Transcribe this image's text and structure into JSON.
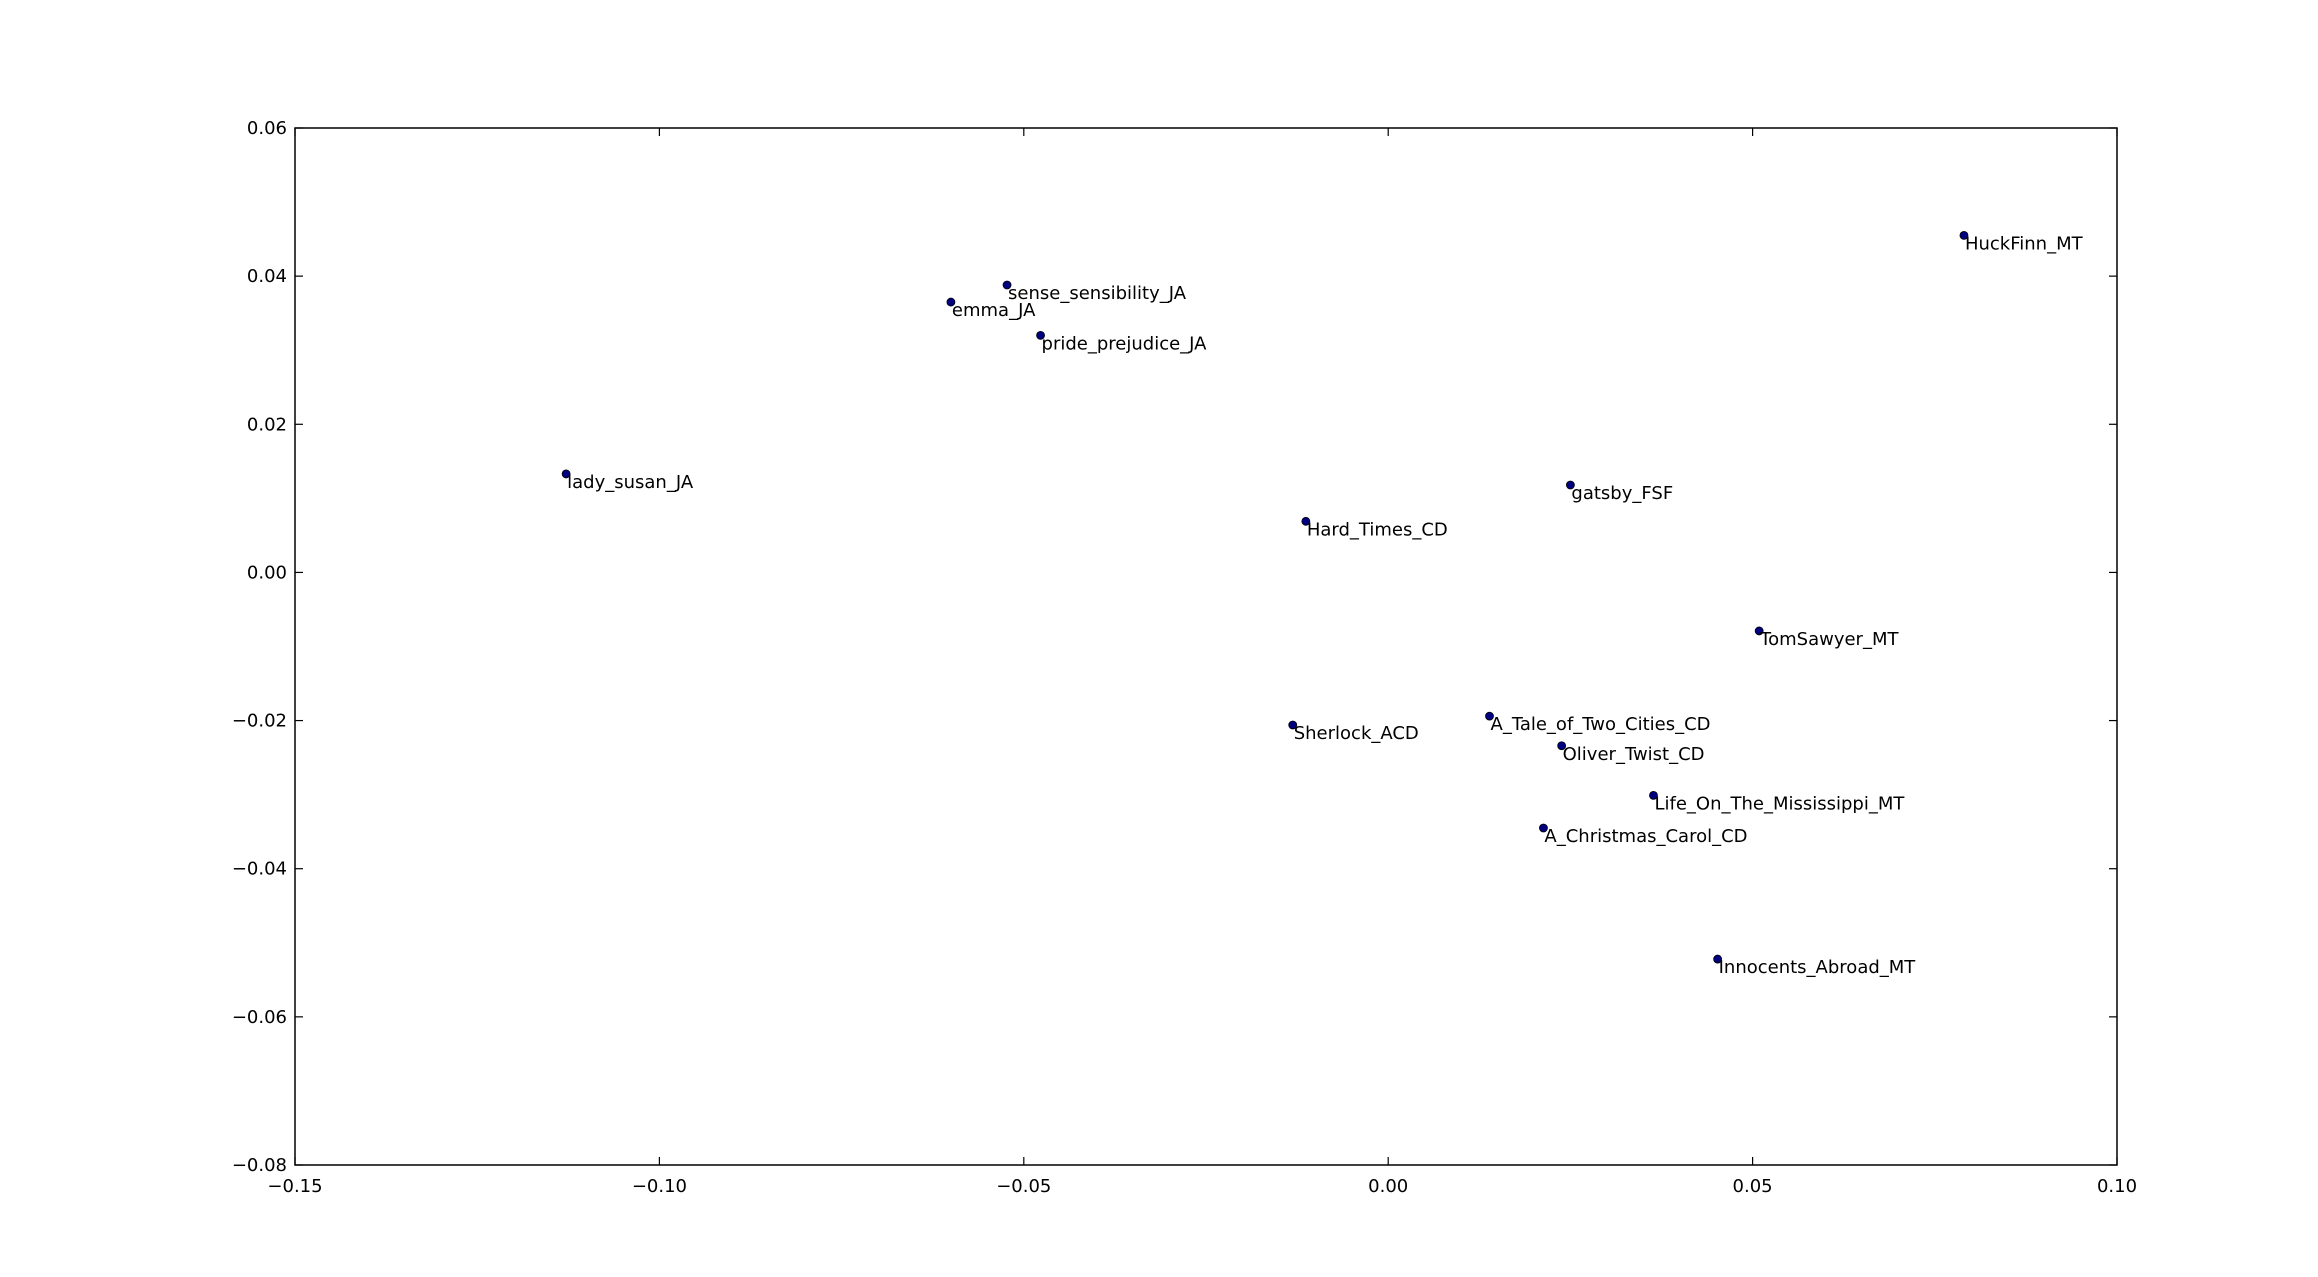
{
  "chart_data": {
    "type": "scatter",
    "title": "",
    "xlabel": "",
    "ylabel": "",
    "xlim": [
      -0.15,
      0.1
    ],
    "ylim": [
      -0.08,
      0.06
    ],
    "grid": false,
    "legend": "none",
    "marker_color": "#000080",
    "x_ticks": [
      -0.15,
      -0.1,
      -0.05,
      0.0,
      0.05,
      0.1
    ],
    "x_tick_labels": [
      "−0.15",
      "−0.10",
      "−0.05",
      "0.00",
      "0.05",
      "0.10"
    ],
    "y_ticks": [
      0.06,
      0.04,
      0.02,
      0.0,
      -0.02,
      -0.04,
      -0.06,
      -0.08
    ],
    "y_tick_labels": [
      "0.06",
      "0.04",
      "0.02",
      "0.00",
      "−0.02",
      "−0.04",
      "−0.06",
      "−0.08"
    ],
    "points": [
      {
        "label": "HuckFinn_MT",
        "x": 0.079,
        "y": 0.0455
      },
      {
        "label": "sense_sensibility_JA",
        "x": -0.0523,
        "y": 0.0388
      },
      {
        "label": "emma_JA",
        "x": -0.06,
        "y": 0.0365
      },
      {
        "label": "pride_prejudice_JA",
        "x": -0.0477,
        "y": 0.032
      },
      {
        "label": "lady_susan_JA",
        "x": -0.1128,
        "y": 0.0133
      },
      {
        "label": "gatsby_FSF",
        "x": 0.025,
        "y": 0.0118
      },
      {
        "label": "Hard_Times_CD",
        "x": -0.0113,
        "y": 0.0069
      },
      {
        "label": "TomSawyer_MT",
        "x": 0.0509,
        "y": -0.0079
      },
      {
        "label": "A_Tale_of_Two_Cities_CD",
        "x": 0.0139,
        "y": -0.0194
      },
      {
        "label": "Sherlock_ACD",
        "x": -0.0131,
        "y": -0.0206
      },
      {
        "label": "Oliver_Twist_CD",
        "x": 0.0238,
        "y": -0.0234
      },
      {
        "label": "Life_On_The_Mississippi_MT",
        "x": 0.0364,
        "y": -0.0301
      },
      {
        "label": "A_Christmas_Carol_CD",
        "x": 0.0213,
        "y": -0.0345
      },
      {
        "label": "Innocents_Abroad_MT",
        "x": 0.0452,
        "y": -0.0522
      }
    ]
  }
}
